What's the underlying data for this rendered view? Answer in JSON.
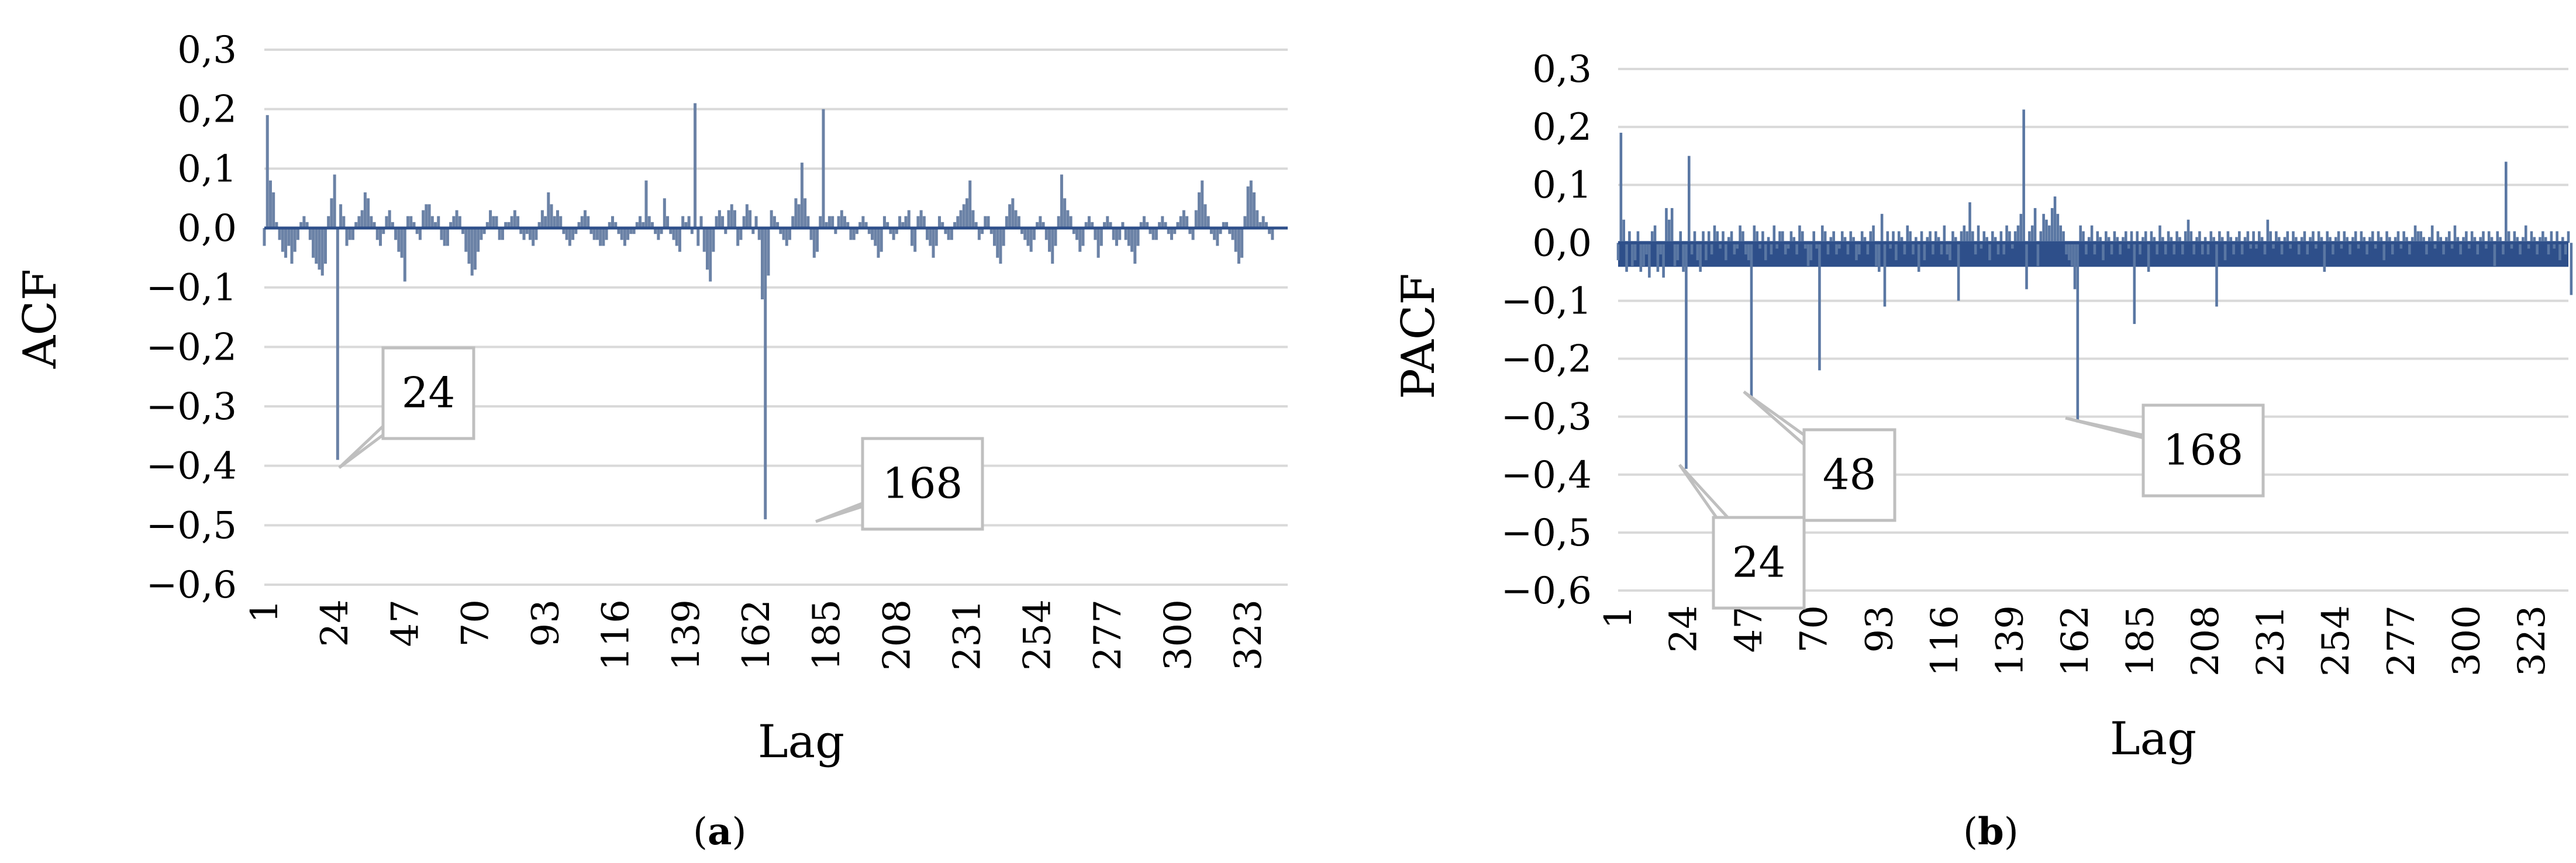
{
  "chart_data": [
    {
      "type": "bar",
      "panel_label": "a",
      "ylabel": "ACF",
      "xlabel": "Lag",
      "ylim": [
        -0.6,
        0.3
      ],
      "y_ticks": [
        "0,3",
        "0,2",
        "0,1",
        "0,0",
        "−0,1",
        "−0,2",
        "−0,3",
        "−0,4",
        "−0,5",
        "−0,6"
      ],
      "x_ticks": [
        "1",
        "24",
        "47",
        "70",
        "93",
        "116",
        "139",
        "162",
        "185",
        "208",
        "231",
        "254",
        "277",
        "300",
        "323"
      ],
      "x_range": [
        1,
        336
      ],
      "grid": true,
      "color": "#6b82a6",
      "annotations": [
        "24",
        "168"
      ],
      "series": [
        {
          "values": [
            -0.03,
            0.19,
            0.08,
            0.06,
            0.01,
            -0.02,
            -0.04,
            -0.05,
            -0.03,
            -0.06,
            -0.04,
            -0.02,
            0.01,
            0.02,
            0.01,
            -0.02,
            -0.05,
            -0.06,
            -0.07,
            -0.08,
            -0.06,
            0.02,
            0.05,
            0.09,
            -0.39,
            0.04,
            0.02,
            -0.03,
            -0.02,
            -0.02,
            0.01,
            0.02,
            0.03,
            0.06,
            0.05,
            0.02,
            0.01,
            -0.02,
            -0.03,
            -0.01,
            0.02,
            0.03,
            0.01,
            -0.02,
            -0.04,
            -0.05,
            -0.09,
            0.02,
            0.02,
            0.01,
            -0.01,
            -0.02,
            0.03,
            0.04,
            0.04,
            0.02,
            0.01,
            0.02,
            -0.02,
            -0.03,
            -0.03,
            0.01,
            0.02,
            0.03,
            0.02,
            -0.01,
            -0.04,
            -0.06,
            -0.08,
            -0.07,
            -0.04,
            -0.02,
            -0.01,
            0.01,
            0.03,
            0.02,
            0.02,
            -0.02,
            -0.02,
            0.01,
            0.01,
            0.02,
            0.03,
            0.02,
            -0.01,
            -0.02,
            -0.01,
            -0.02,
            -0.03,
            -0.02,
            0.01,
            0.03,
            0.02,
            0.06,
            0.04,
            0.02,
            0.03,
            0.02,
            -0.01,
            -0.02,
            -0.03,
            -0.02,
            -0.01,
            0.01,
            0.02,
            0.03,
            0.02,
            -0.01,
            -0.02,
            -0.02,
            -0.03,
            -0.03,
            -0.02,
            0.01,
            0.02,
            0.01,
            -0.01,
            -0.02,
            -0.03,
            -0.02,
            -0.01,
            -0.01,
            0.01,
            0.02,
            0.01,
            0.08,
            0.02,
            0.01,
            -0.01,
            -0.02,
            -0.01,
            0.05,
            0.02,
            -0.01,
            -0.02,
            -0.03,
            -0.04,
            0.02,
            0.01,
            0.02,
            -0.01,
            0.21,
            -0.03,
            0.02,
            -0.04,
            -0.07,
            -0.09,
            -0.04,
            0.02,
            0.03,
            0.02,
            -0.01,
            0.03,
            0.04,
            0.03,
            -0.03,
            -0.02,
            0.02,
            0.04,
            0.03,
            -0.01,
            0.02,
            -0.02,
            -0.12,
            -0.49,
            -0.08,
            0.03,
            0.02,
            0.01,
            -0.01,
            -0.02,
            -0.03,
            -0.02,
            0.02,
            0.05,
            0.04,
            0.11,
            0.05,
            0.02,
            -0.02,
            -0.05,
            -0.04,
            0.02,
            0.2,
            0.01,
            0.02,
            0.02,
            -0.01,
            0.02,
            0.03,
            0.02,
            0.01,
            -0.02,
            -0.02,
            -0.01,
            0.01,
            0.02,
            0.01,
            -0.01,
            -0.02,
            -0.03,
            -0.05,
            -0.04,
            0.02,
            0.01,
            -0.01,
            -0.02,
            -0.01,
            0.02,
            0.01,
            0.02,
            0.03,
            -0.03,
            -0.04,
            0.02,
            0.03,
            0.02,
            -0.02,
            -0.03,
            -0.05,
            -0.03,
            0.02,
            0.01,
            -0.01,
            -0.02,
            -0.02,
            0.01,
            0.02,
            0.03,
            0.04,
            0.05,
            0.08,
            0.03,
            0.01,
            -0.02,
            -0.01,
            0.02,
            0.02,
            -0.01,
            -0.03,
            -0.05,
            -0.06,
            -0.03,
            0.02,
            0.04,
            0.05,
            0.03,
            0.02,
            -0.01,
            -0.02,
            -0.03,
            -0.04,
            -0.02,
            0.01,
            0.02,
            0.01,
            -0.02,
            -0.04,
            -0.06,
            -0.03,
            0.02,
            0.09,
            0.05,
            0.03,
            0.02,
            -0.01,
            -0.02,
            -0.04,
            -0.03,
            0.01,
            0.02,
            0.01,
            -0.02,
            -0.05,
            -0.03,
            0.01,
            0.02,
            0.01,
            -0.02,
            -0.03,
            -0.02,
            0.01,
            -0.02,
            -0.03,
            -0.04,
            -0.06,
            -0.03,
            0.01,
            0.02,
            0.01,
            -0.01,
            -0.02,
            -0.02,
            0.01,
            0.02,
            0.01,
            -0.01,
            -0.02,
            -0.01,
            0.01,
            0.02,
            0.03,
            0.02,
            -0.01,
            -0.02,
            0.03,
            0.06,
            0.08,
            0.04,
            0.02,
            -0.01,
            -0.02,
            -0.03,
            -0.01,
            0.01,
            0.01,
            -0.01,
            -0.02,
            -0.04,
            -0.06,
            -0.05,
            0.02,
            0.07,
            0.08,
            0.06,
            0.03,
            0.01,
            0.02,
            0.01,
            -0.01,
            -0.02
          ]
        }
      ]
    },
    {
      "type": "bar",
      "panel_label": "b",
      "ylabel": "PACF",
      "xlabel": "Lag",
      "ylim": [
        -0.6,
        0.3
      ],
      "y_ticks": [
        "0,3",
        "0,2",
        "0,1",
        "0,0",
        "−0,1",
        "−0,2",
        "−0,3",
        "−0,4",
        "−0,5",
        "−0,6"
      ],
      "x_ticks": [
        "1",
        "24",
        "47",
        "70",
        "93",
        "116",
        "139",
        "162",
        "185",
        "208",
        "231",
        "254",
        "277",
        "300",
        "323"
      ],
      "x_range": [
        1,
        336
      ],
      "grid": true,
      "color": "#5a77a3",
      "band_color": "#2e4f8a",
      "annotations": [
        "24",
        "48",
        "168"
      ],
      "series": [
        {
          "values": [
            -0.03,
            0.19,
            0.04,
            -0.05,
            0.02,
            -0.04,
            -0.03,
            0.02,
            -0.05,
            -0.04,
            -0.02,
            -0.06,
            0.02,
            0.03,
            -0.05,
            -0.02,
            -0.06,
            0.06,
            0.04,
            0.06,
            -0.04,
            -0.03,
            0.02,
            -0.05,
            -0.39,
            0.15,
            -0.02,
            0.02,
            -0.03,
            -0.05,
            0.02,
            -0.03,
            0.02,
            -0.02,
            0.03,
            0.02,
            -0.01,
            0.02,
            -0.03,
            0.01,
            0.02,
            -0.02,
            -0.01,
            0.03,
            0.02,
            -0.02,
            -0.03,
            -0.27,
            0.03,
            0.02,
            -0.01,
            0.02,
            -0.03,
            0.01,
            -0.02,
            0.03,
            -0.01,
            0.02,
            0.02,
            -0.02,
            -0.01,
            0.02,
            0.01,
            -0.02,
            0.03,
            0.02,
            -0.01,
            -0.04,
            -0.03,
            0.02,
            -0.01,
            -0.22,
            0.03,
            0.02,
            -0.02,
            0.01,
            0.02,
            -0.02,
            -0.01,
            0.02,
            0.01,
            -0.02,
            0.02,
            0.01,
            -0.03,
            -0.02,
            0.02,
            0.01,
            -0.02,
            0.02,
            0.03,
            -0.04,
            -0.05,
            0.05,
            -0.11,
            0.02,
            -0.01,
            0.02,
            -0.03,
            0.02,
            0.01,
            -0.02,
            0.03,
            0.02,
            -0.02,
            0.01,
            -0.05,
            0.02,
            -0.03,
            0.01,
            0.02,
            -0.02,
            0.02,
            0.01,
            -0.02,
            0.03,
            -0.02,
            -0.03,
            0.02,
            0.01,
            -0.1,
            0.02,
            0.03,
            0.02,
            0.07,
            0.02,
            -0.02,
            0.03,
            -0.01,
            0.02,
            0.01,
            -0.03,
            0.02,
            0.01,
            -0.02,
            0.02,
            -0.02,
            0.03,
            0.02,
            -0.01,
            0.02,
            0.03,
            0.05,
            0.23,
            -0.08,
            0.02,
            0.03,
            0.06,
            -0.04,
            0.02,
            0.05,
            0.04,
            0.03,
            0.06,
            0.08,
            0.05,
            0.03,
            0.02,
            -0.02,
            -0.03,
            -0.04,
            -0.08,
            -0.31,
            0.03,
            0.02,
            -0.02,
            0.01,
            0.03,
            -0.02,
            0.02,
            0.01,
            -0.03,
            0.02,
            0.01,
            -0.02,
            0.02,
            0.01,
            -0.02,
            0.01,
            0.02,
            -0.01,
            0.02,
            -0.14,
            0.02,
            -0.02,
            0.01,
            0.02,
            -0.05,
            0.02,
            0.01,
            -0.02,
            0.03,
            0.01,
            -0.02,
            0.02,
            0.01,
            -0.02,
            0.02,
            0.01,
            -0.02,
            0.02,
            0.04,
            0.02,
            -0.02,
            0.01,
            0.02,
            -0.02,
            0.01,
            -0.02,
            0.02,
            0.01,
            -0.11,
            0.02,
            0.01,
            -0.03,
            0.02,
            0.01,
            -0.02,
            0.01,
            0.02,
            -0.02,
            0.01,
            0.02,
            -0.01,
            0.02,
            -0.01,
            0.02,
            0.01,
            -0.02,
            0.04,
            0.02,
            -0.01,
            0.02,
            0.01,
            -0.02,
            0.01,
            0.02,
            -0.01,
            0.02,
            0.01,
            -0.02,
            0.01,
            0.02,
            -0.02,
            0.01,
            0.02,
            -0.01,
            0.02,
            0.01,
            -0.05,
            0.02,
            0.01,
            -0.02,
            0.01,
            0.02,
            -0.01,
            0.02,
            0.01,
            -0.02,
            0.01,
            0.02,
            -0.01,
            0.02,
            0.01,
            -0.02,
            0.01,
            0.02,
            -0.01,
            0.02,
            0.01,
            -0.03,
            0.02,
            0.01,
            -0.02,
            0.01,
            0.02,
            -0.01,
            0.02,
            0.01,
            -0.02,
            0.01,
            0.03,
            0.02,
            0.02,
            0.01,
            -0.02,
            0.01,
            0.03,
            -0.01,
            0.02,
            0.01,
            -0.02,
            0.01,
            0.02,
            -0.01,
            0.03,
            0.01,
            -0.02,
            0.01,
            0.02,
            -0.01,
            0.02,
            0.01,
            -0.02,
            0.01,
            0.02,
            -0.01,
            0.02,
            0.01,
            -0.04,
            0.02,
            0.01,
            -0.02,
            0.14,
            0.02,
            -0.01,
            0.02,
            0.01,
            -0.02,
            0.01,
            0.03,
            -0.01,
            0.02,
            0.01,
            -0.02,
            0.01,
            0.02,
            0.01,
            -0.02,
            0.02,
            -0.01,
            0.02,
            -0.03,
            0.01,
            -0.02,
            0.02,
            -0.09
          ]
        }
      ]
    }
  ],
  "captions": [
    {
      "open": "(",
      "letter": "a",
      "close": ")"
    },
    {
      "open": "(",
      "letter": "b",
      "close": ")"
    }
  ]
}
